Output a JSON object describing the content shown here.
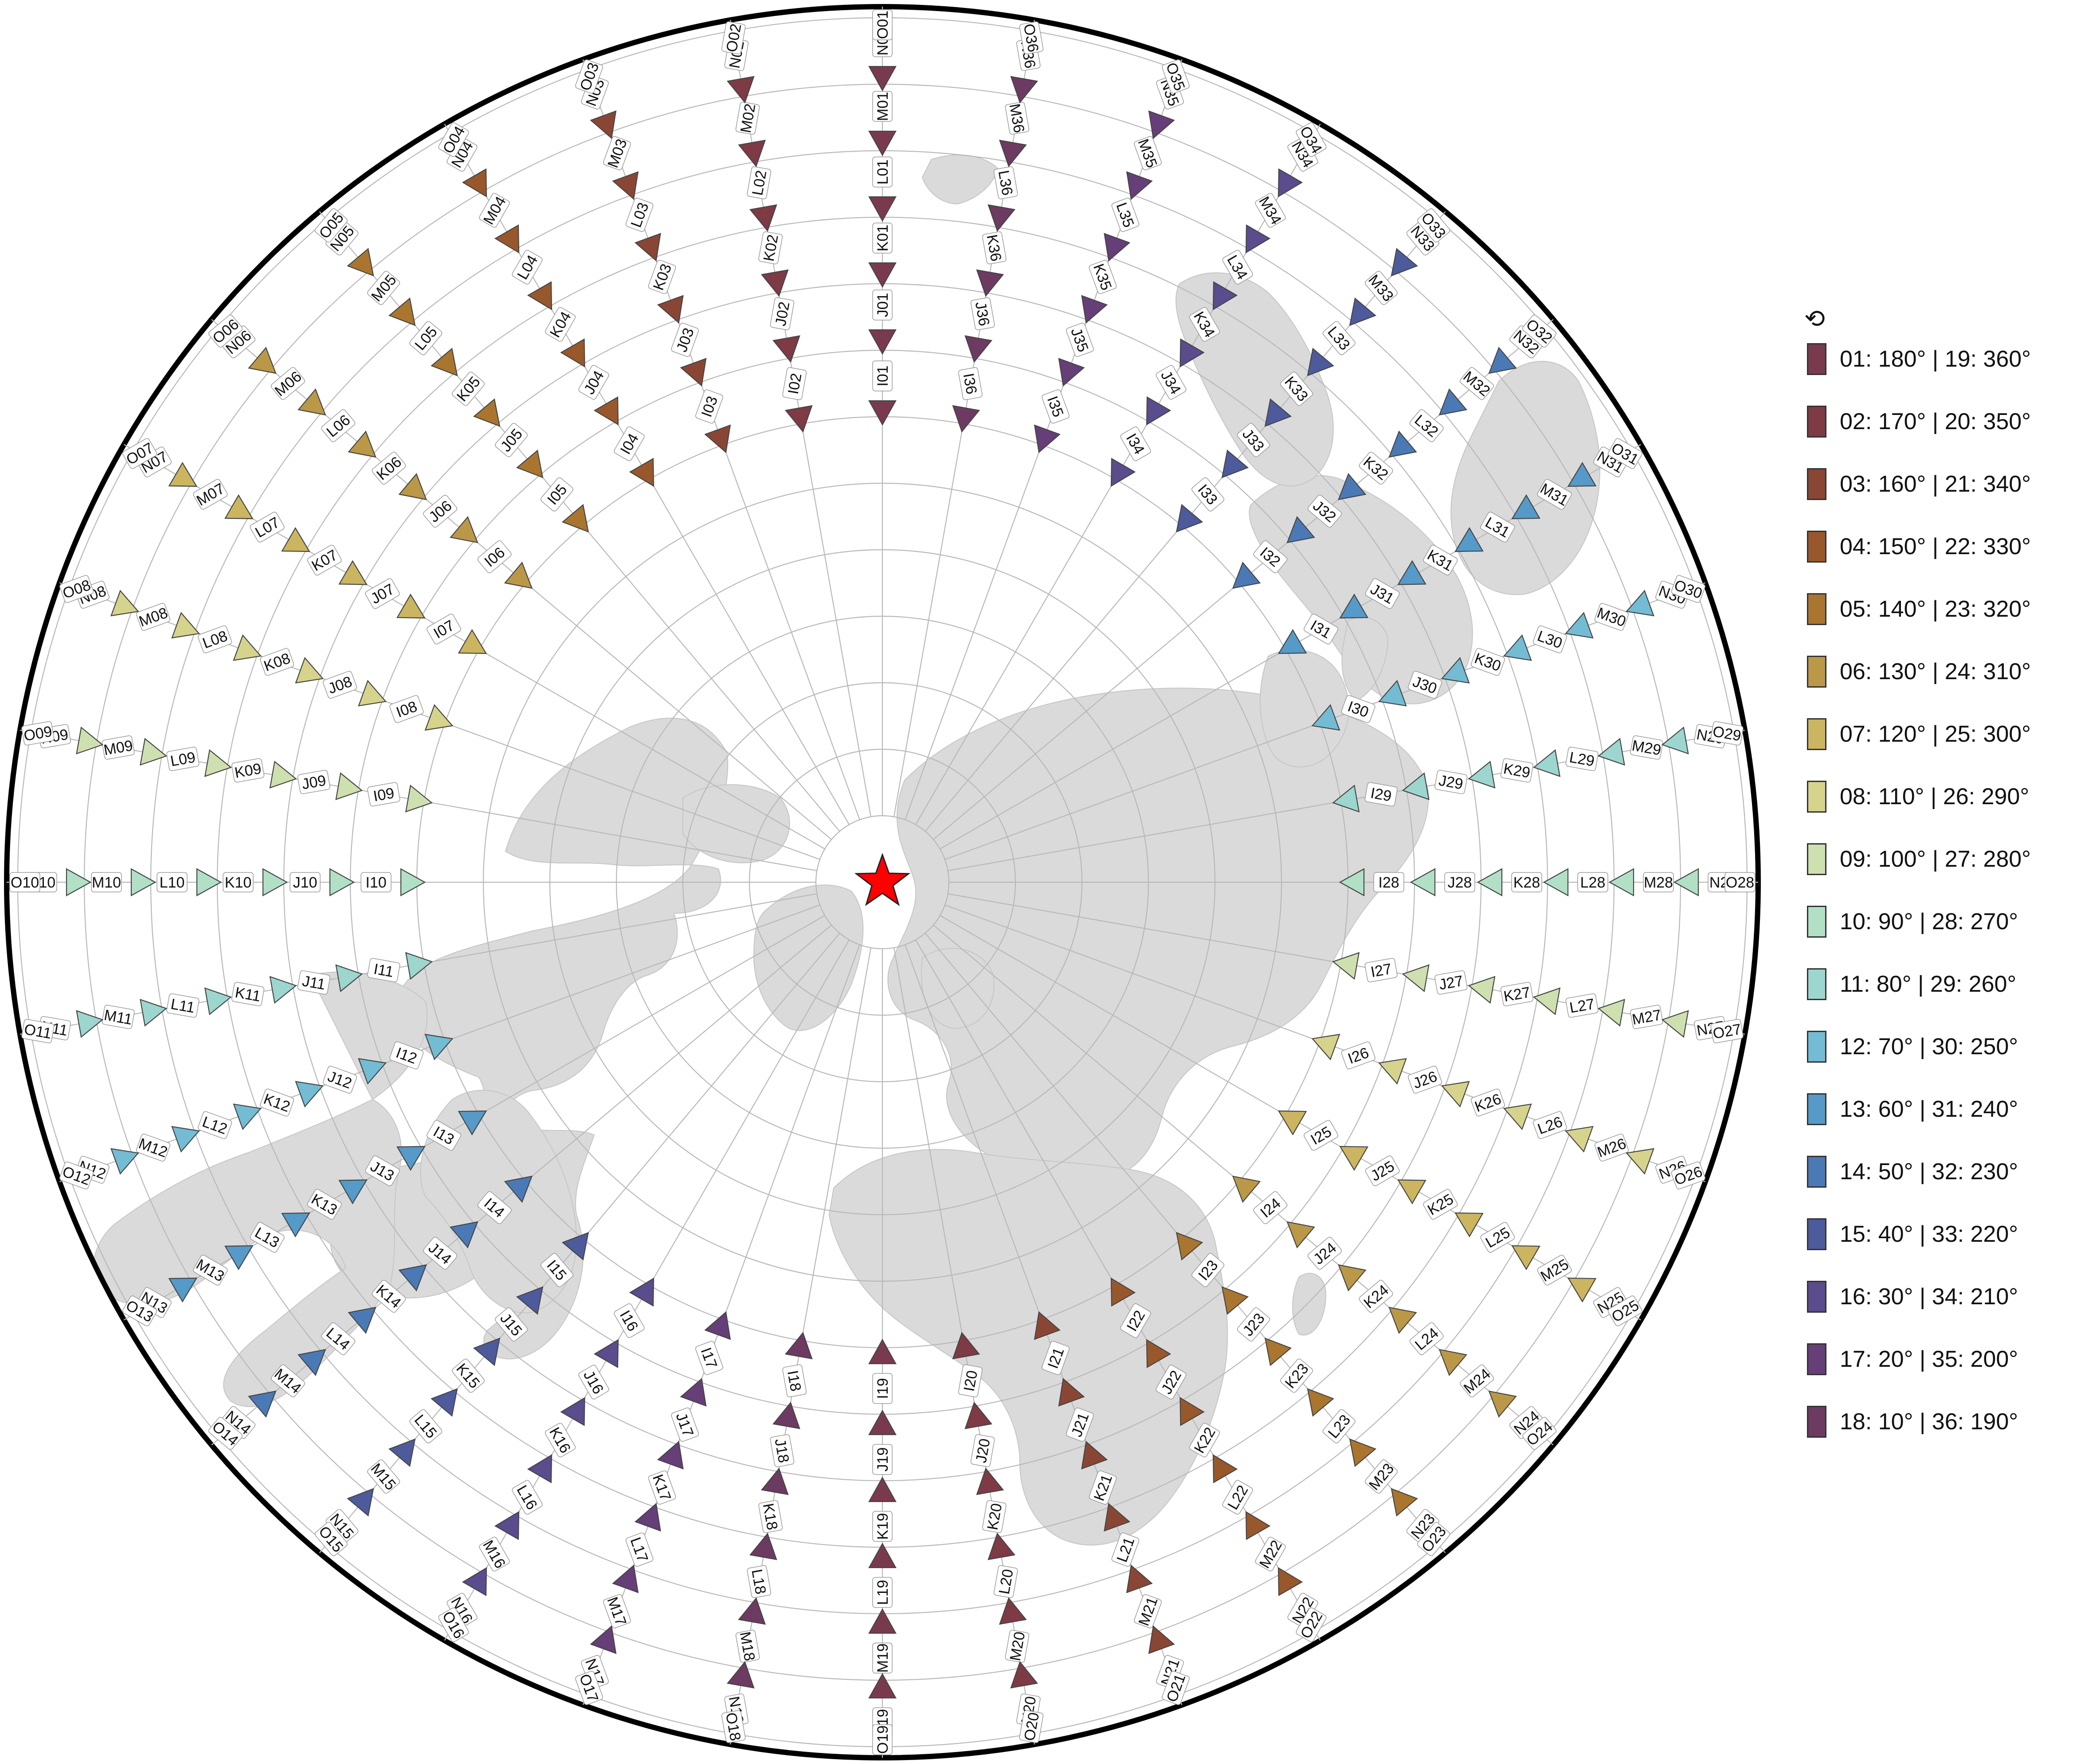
{
  "map": {
    "projection": "azimuthal-equidistant",
    "center_marker": "red-star-icon",
    "rows": [
      "I",
      "J",
      "K",
      "L",
      "M",
      "N",
      "O"
    ],
    "columns": 36,
    "land_color": "#dadada",
    "grid_color": "#b8b8b8",
    "marker_color": "#ff0000"
  },
  "legend": {
    "icon": "⟲",
    "icon_name": "rotation-icon",
    "items": [
      {
        "label": "01: 180° | 19: 360°",
        "color": "#7a3a4e"
      },
      {
        "label": "02: 170° | 20: 350°",
        "color": "#7e3a45"
      },
      {
        "label": "03: 160° | 21: 340°",
        "color": "#8a4634"
      },
      {
        "label": "04: 150° | 22: 330°",
        "color": "#98582c"
      },
      {
        "label": "05: 140° | 23: 320°",
        "color": "#a9752f"
      },
      {
        "label": "06: 130° | 24: 310°",
        "color": "#bb9848"
      },
      {
        "label": "07: 120° | 25: 300°",
        "color": "#ccb560"
      },
      {
        "label": "08: 110° | 26: 290°",
        "color": "#d6d38c"
      },
      {
        "label": "09: 100° | 27: 280°",
        "color": "#cfe0b0"
      },
      {
        "label": "10: 90° | 28: 270°",
        "color": "#b2e0c6"
      },
      {
        "label": "11: 80° | 29: 260°",
        "color": "#9dd6cf"
      },
      {
        "label": "12: 70° | 30: 250°",
        "color": "#73bcd4"
      },
      {
        "label": "13: 60° | 31: 240°",
        "color": "#559ac8"
      },
      {
        "label": "14: 50° | 32: 230°",
        "color": "#4b79b5"
      },
      {
        "label": "15: 40° | 33: 220°",
        "color": "#4d5b9c"
      },
      {
        "label": "16: 30° | 34: 210°",
        "color": "#5a4c8d"
      },
      {
        "label": "17: 20° | 35: 200°",
        "color": "#663e78"
      },
      {
        "label": "18: 10° | 36: 190°",
        "color": "#6d3a62"
      }
    ]
  }
}
